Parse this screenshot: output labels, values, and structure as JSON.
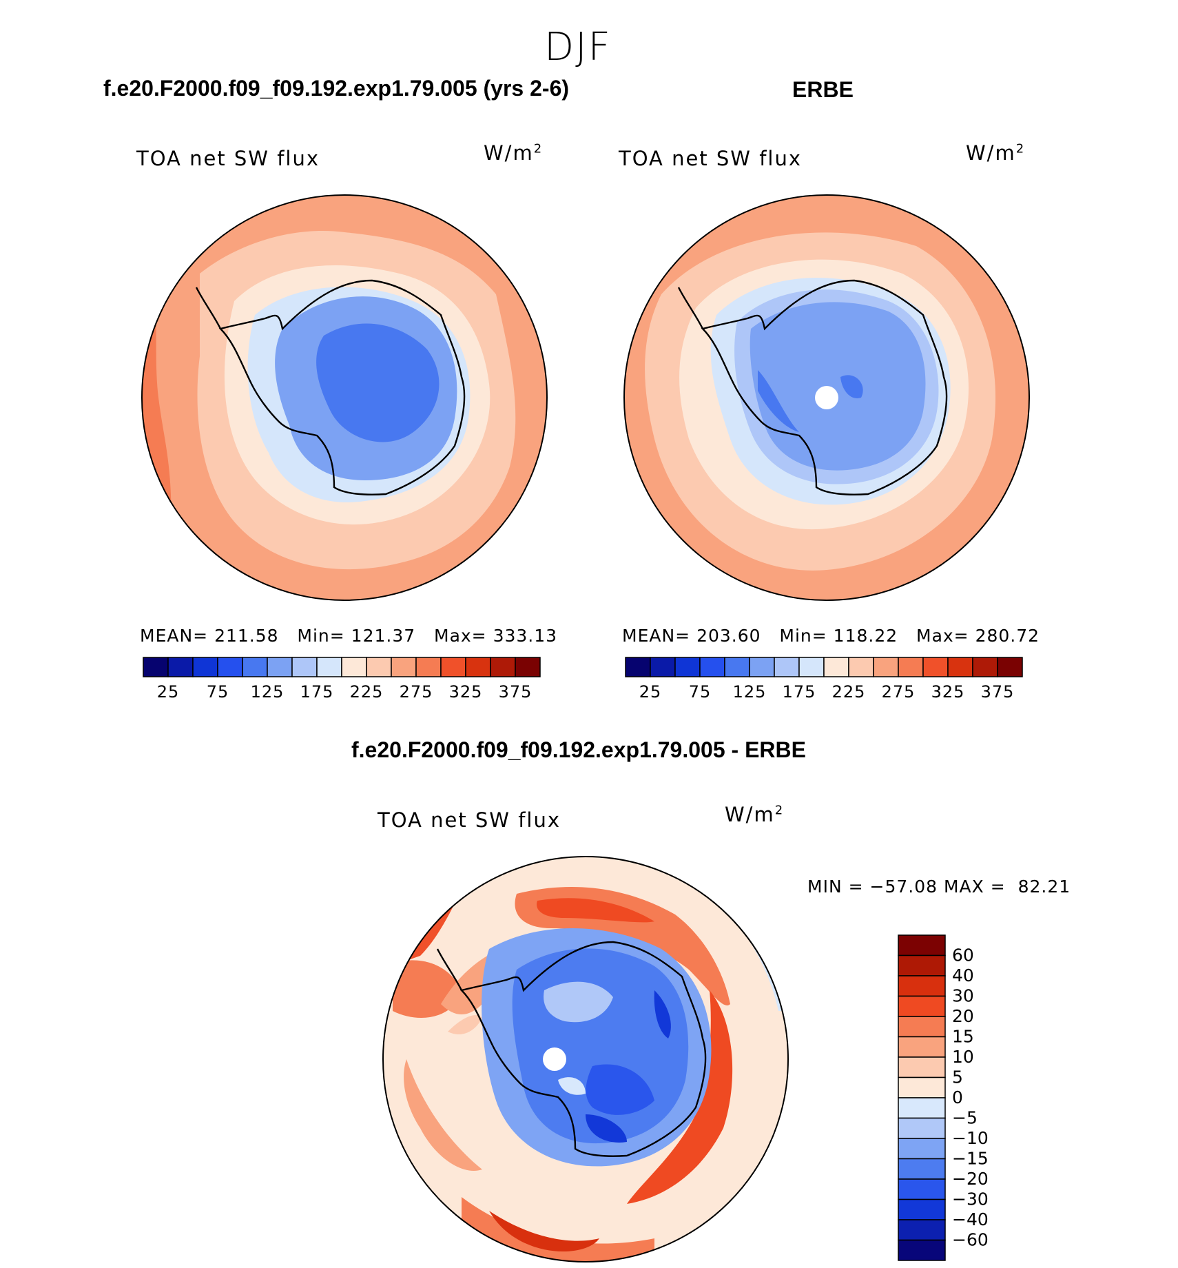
{
  "figure": {
    "suptitle": "DJF"
  },
  "panels": [
    {
      "id": "model",
      "title": "f.e20.F2000.f09_f09.192.exp1.79.005 (yrs 2-6)",
      "variable": "TOA net SW flux",
      "units_base": "W/m",
      "units_exp": "2",
      "stats": {
        "mean_label": "MEAN=",
        "mean": "211.58",
        "min_label": "Min=",
        "min": "121.37",
        "max_label": "Max=",
        "max": "333.13"
      }
    },
    {
      "id": "obs",
      "title": "ERBE",
      "variable": "TOA net SW flux",
      "units_base": "W/m",
      "units_exp": "2",
      "stats": {
        "mean_label": "MEAN=",
        "mean": "203.60",
        "min_label": "Min=",
        "min": "118.22",
        "max_label": "Max=",
        "max": "280.72"
      }
    },
    {
      "id": "diff",
      "title": "f.e20.F2000.f09_f09.192.exp1.79.005 - ERBE",
      "variable": "TOA net SW flux",
      "units_base": "W/m",
      "units_exp": "2",
      "stats": {
        "min_label": "MIN =",
        "min": "−57.08",
        "max_label": "MAX =",
        "max": "82.21"
      }
    }
  ],
  "colorbars": {
    "absolute": {
      "colors": [
        "#06036f",
        "#0a1aa8",
        "#0f35d6",
        "#2550ee",
        "#4878f0",
        "#7ca2f3",
        "#aec6f8",
        "#d5e6fb",
        "#fde8d8",
        "#fccab0",
        "#f9a37e",
        "#f57c53",
        "#f0512a",
        "#d8330f",
        "#ae1a07",
        "#7a0202"
      ],
      "tick_labels": [
        "25",
        "75",
        "125",
        "175",
        "225",
        "275",
        "325",
        "375"
      ]
    },
    "difference": {
      "colors": [
        "#08067a",
        "#0c20b0",
        "#1238d8",
        "#2a56ec",
        "#4d7cf0",
        "#7ea4f4",
        "#b0c8f8",
        "#d8e8fc",
        "#fde8d8",
        "#fccab0",
        "#f9a37e",
        "#f57c53",
        "#ef4a22",
        "#d8300e",
        "#ae1905",
        "#7c0202"
      ],
      "tick_labels": [
        "60",
        "40",
        "30",
        "20",
        "15",
        "10",
        "5",
        "0",
        "−5",
        "−10",
        "−15",
        "−20",
        "−30",
        "−40",
        "−60"
      ]
    }
  },
  "chart_data": {
    "type": "heatmap",
    "projection": "south polar stereographic",
    "season": "DJF",
    "fields": [
      {
        "name": "f.e20.F2000.f09_f09.192.exp1.79.005 (yrs 2-6)",
        "variable": "TOA net SW flux",
        "units": "W/m2",
        "mean": 211.58,
        "min": 121.37,
        "max": 333.13,
        "levels": [
          25,
          50,
          75,
          100,
          125,
          150,
          175,
          200,
          225,
          250,
          275,
          300,
          325,
          350,
          375
        ]
      },
      {
        "name": "ERBE",
        "variable": "TOA net SW flux",
        "units": "W/m2",
        "mean": 203.6,
        "min": 118.22,
        "max": 280.72,
        "levels": [
          25,
          50,
          75,
          100,
          125,
          150,
          175,
          200,
          225,
          250,
          275,
          300,
          325,
          350,
          375
        ]
      },
      {
        "name": "f.e20.F2000.f09_f09.192.exp1.79.005 - ERBE",
        "variable": "TOA net SW flux",
        "units": "W/m2",
        "min": -57.08,
        "max": 82.21,
        "levels": [
          -60,
          -40,
          -30,
          -20,
          -15,
          -10,
          -5,
          0,
          5,
          10,
          15,
          20,
          30,
          40,
          60
        ]
      }
    ]
  }
}
